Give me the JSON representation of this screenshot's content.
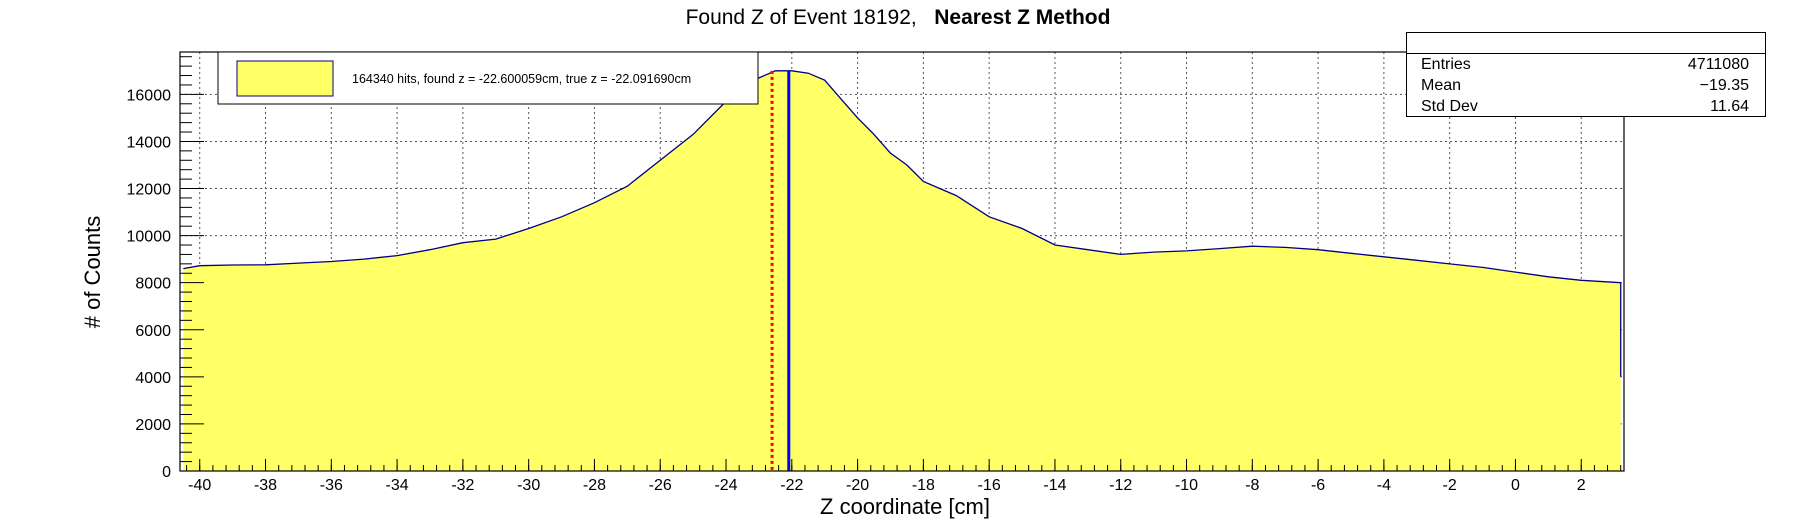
{
  "title": {
    "text": "Found Z of Event 18192,",
    "bold": "Nearest Z Method"
  },
  "stats": {
    "rows": [
      {
        "key": "Entries",
        "value": "4711080"
      },
      {
        "key": "Mean",
        "value": "−19.35"
      },
      {
        "key": "Std Dev",
        "value": "11.64"
      }
    ]
  },
  "chart_data": {
    "type": "area",
    "title": "Found Z of Event 18192,   Nearest Z Method",
    "xlabel": "Z coordinate [cm]",
    "ylabel": "# of Counts",
    "xlim": [
      -40.6,
      3.3
    ],
    "ylim": [
      0,
      17800
    ],
    "grid": true,
    "fill_color": "#ffff66",
    "line_color": "#000080",
    "x_ticks": [
      "-40",
      "-38",
      "-36",
      "-34",
      "-32",
      "-30",
      "-28",
      "-26",
      "-24",
      "-22",
      "-20",
      "-18",
      "-16",
      "-14",
      "-12",
      "-10",
      "-8",
      "-6",
      "-4",
      "-2",
      "0",
      "2"
    ],
    "y_ticks": [
      "0",
      "2000",
      "4000",
      "6000",
      "8000",
      "10000",
      "12000",
      "14000",
      "16000"
    ],
    "legend": {
      "placement": "top-left",
      "label": "164340 hits, found z = -22.600059cm, true z = -22.091690cm"
    },
    "markers": [
      {
        "name": "found z",
        "x": -22.600059,
        "color": "#ff0000",
        "style": "dotted"
      },
      {
        "name": "true z",
        "x": -22.09169,
        "color": "#0000ff",
        "style": "solid"
      }
    ],
    "series": [
      {
        "x": [
          -40.5,
          -40.0,
          -39.0,
          -38.0,
          -37.0,
          -36.0,
          -35.0,
          -34.0,
          -33.0,
          -32.0,
          -31.0,
          -30.0,
          -29.0,
          -28.0,
          -27.0,
          -26.0,
          -25.0,
          -24.0,
          -23.5,
          -23.0,
          -22.5,
          -22.0,
          -21.5,
          -21.0,
          -20.5,
          -20.0,
          -19.5,
          -19.0,
          -18.5,
          -18.0,
          -17.0,
          -16.0,
          -15.0,
          -14.0,
          -13.0,
          -12.0,
          -11.0,
          -10.0,
          -9.0,
          -8.0,
          -7.0,
          -6.0,
          -5.0,
          -4.0,
          -3.0,
          -2.0,
          -1.0,
          0.0,
          1.0,
          2.0,
          3.2
        ],
        "values": [
          8600,
          8720,
          8750,
          8760,
          8830,
          8900,
          9000,
          9150,
          9400,
          9700,
          9850,
          10300,
          10800,
          11400,
          12100,
          13200,
          14300,
          15700,
          16300,
          16700,
          17000,
          17000,
          16900,
          16600,
          15800,
          15000,
          14300,
          13500,
          13000,
          12300,
          11700,
          10800,
          10300,
          9600,
          9400,
          9200,
          9300,
          9350,
          9450,
          9550,
          9500,
          9400,
          9250,
          9100,
          8950,
          8800,
          8650,
          8450,
          8250,
          8100,
          8000
        ]
      }
    ]
  }
}
